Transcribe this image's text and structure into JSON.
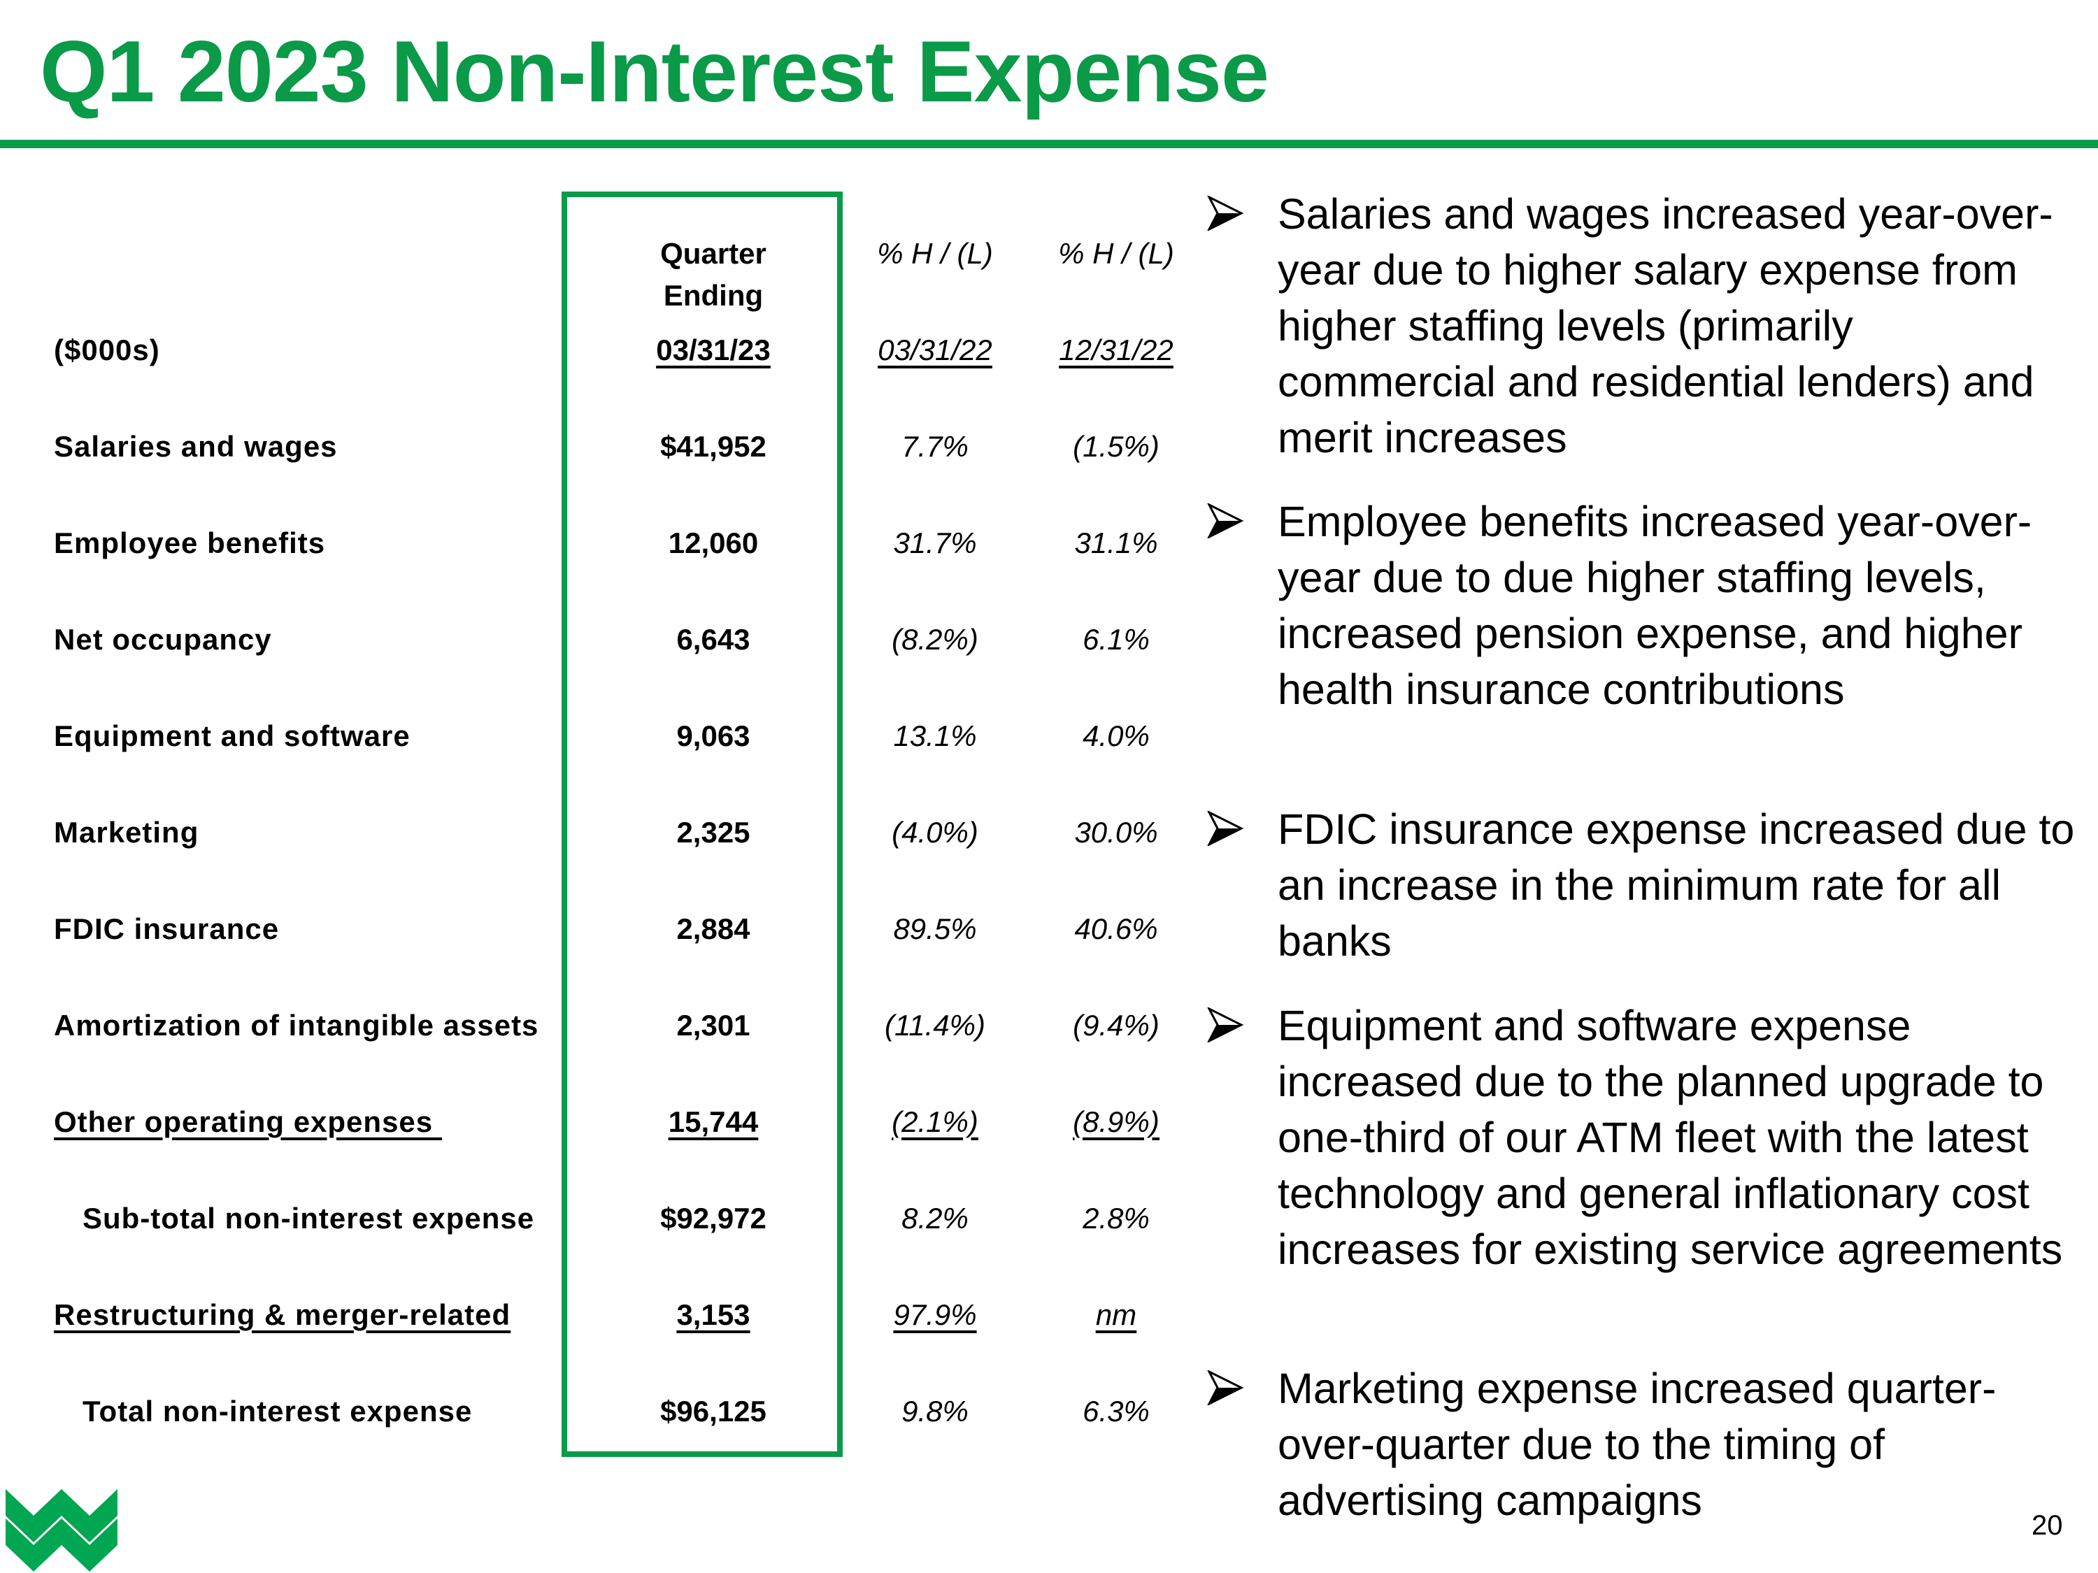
{
  "title": "Q1 2023 Non-Interest Expense",
  "table": {
    "header": {
      "col1": "Quarter Ending",
      "col2": "% H / (L)",
      "col3": "% H / (L)"
    },
    "units_row": {
      "label": "($000s)",
      "col1": "03/31/23",
      "col2": "03/31/22",
      "col3": "12/31/22"
    },
    "rows": [
      {
        "label": "Salaries and wages",
        "col1": "$41,952",
        "col2": "7.7%",
        "col3": "(1.5%)"
      },
      {
        "label": "Employee benefits",
        "col1": "12,060",
        "col2": "31.7%",
        "col3": "31.1%"
      },
      {
        "label": "Net occupancy",
        "col1": "6,643",
        "col2": "(8.2%)",
        "col3": "6.1%"
      },
      {
        "label": "Equipment and software",
        "col1": "9,063",
        "col2": "13.1%",
        "col3": "4.0%"
      },
      {
        "label": "Marketing",
        "col1": "2,325",
        "col2": "(4.0%)",
        "col3": "30.0%"
      },
      {
        "label": "FDIC insurance",
        "col1": "2,884",
        "col2": "89.5%",
        "col3": "40.6%"
      },
      {
        "label": "Amortization of intangible assets",
        "col1": "2,301",
        "col2": "(11.4%)",
        "col3": "(9.4%)"
      },
      {
        "label": "Other operating expenses ",
        "col1": "15,744",
        "col2": "(2.1%)",
        "col3": "(8.9%)"
      },
      {
        "label": "Sub-total non-interest expense",
        "col1": "$92,972",
        "col2": "8.2%",
        "col3": "2.8%"
      },
      {
        "label": "Restructuring & merger-related",
        "col1": "3,153",
        "col2": "97.9%",
        "col3": "nm"
      },
      {
        "label": "Total non-interest expense",
        "col1": "$96,125",
        "col2": "9.8%",
        "col3": "6.3%"
      }
    ]
  },
  "bullets": [
    "Salaries and wages increased year-over-year due to higher salary expense from higher staffing levels (primarily commercial and residential lenders) and merit increases",
    "Employee benefits increased year-over-year due to due higher staffing levels, increased pension expense, and higher health insurance contributions",
    "FDIC insurance expense increased due to an increase in the minimum rate for all banks",
    "Equipment and software expense increased due to the planned upgrade to one-third of our ATM fleet with the latest technology and general inflationary cost increases for existing service agreements",
    "Marketing expense increased quarter-over-quarter due to the timing of advertising campaigns"
  ],
  "bullet_icon": "arrowhead-bullet",
  "page_number": "20",
  "colors": {
    "brand_green": "#0a9a48",
    "logo_green": "#00a651"
  }
}
